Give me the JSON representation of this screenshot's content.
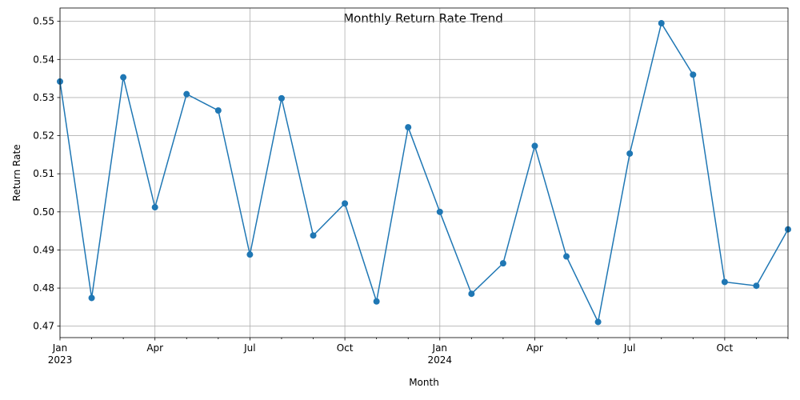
{
  "chart_data": {
    "type": "line",
    "title": "Monthly Return Rate Trend",
    "xlabel": "Month",
    "ylabel": "Return Rate",
    "grid": true,
    "legend": "none",
    "ylim": [
      0.467,
      0.5535
    ],
    "yticks": [
      0.47,
      0.48,
      0.49,
      0.5,
      0.51,
      0.52,
      0.53,
      0.54,
      0.55
    ],
    "ytick_labels": [
      "0.47",
      "0.48",
      "0.49",
      "0.50",
      "0.51",
      "0.52",
      "0.53",
      "0.54",
      "0.55"
    ],
    "x": [
      "2023-01",
      "2023-02",
      "2023-03",
      "2023-04",
      "2023-05",
      "2023-06",
      "2023-07",
      "2023-08",
      "2023-09",
      "2023-10",
      "2023-11",
      "2023-12",
      "2024-01",
      "2024-02",
      "2024-03",
      "2024-04",
      "2024-05",
      "2024-06",
      "2024-07",
      "2024-08",
      "2024-09",
      "2024-10",
      "2024-11",
      "2024-12"
    ],
    "xlim": [
      "2023-01",
      "2024-12"
    ],
    "x_major_ticks": [
      {
        "date": "2023-01",
        "label": "Jan",
        "sublabel": "2023"
      },
      {
        "date": "2023-04",
        "label": "Apr",
        "sublabel": ""
      },
      {
        "date": "2023-07",
        "label": "Jul",
        "sublabel": ""
      },
      {
        "date": "2023-10",
        "label": "Oct",
        "sublabel": ""
      },
      {
        "date": "2024-01",
        "label": "Jan",
        "sublabel": "2024"
      },
      {
        "date": "2024-04",
        "label": "Apr",
        "sublabel": ""
      },
      {
        "date": "2024-07",
        "label": "Jul",
        "sublabel": ""
      },
      {
        "date": "2024-10",
        "label": "Oct",
        "sublabel": ""
      }
    ],
    "series": [
      {
        "color": "#1f77b4",
        "values": [
          0.5342,
          0.4774,
          0.5353,
          0.5012,
          0.5309,
          0.5266,
          0.4888,
          0.5298,
          0.4938,
          0.5022,
          0.4765,
          0.5222,
          0.5,
          0.4785,
          0.4865,
          0.5173,
          0.4883,
          0.4711,
          0.5153,
          0.5495,
          0.536,
          0.4816,
          0.4806,
          0.4954
        ]
      }
    ]
  }
}
